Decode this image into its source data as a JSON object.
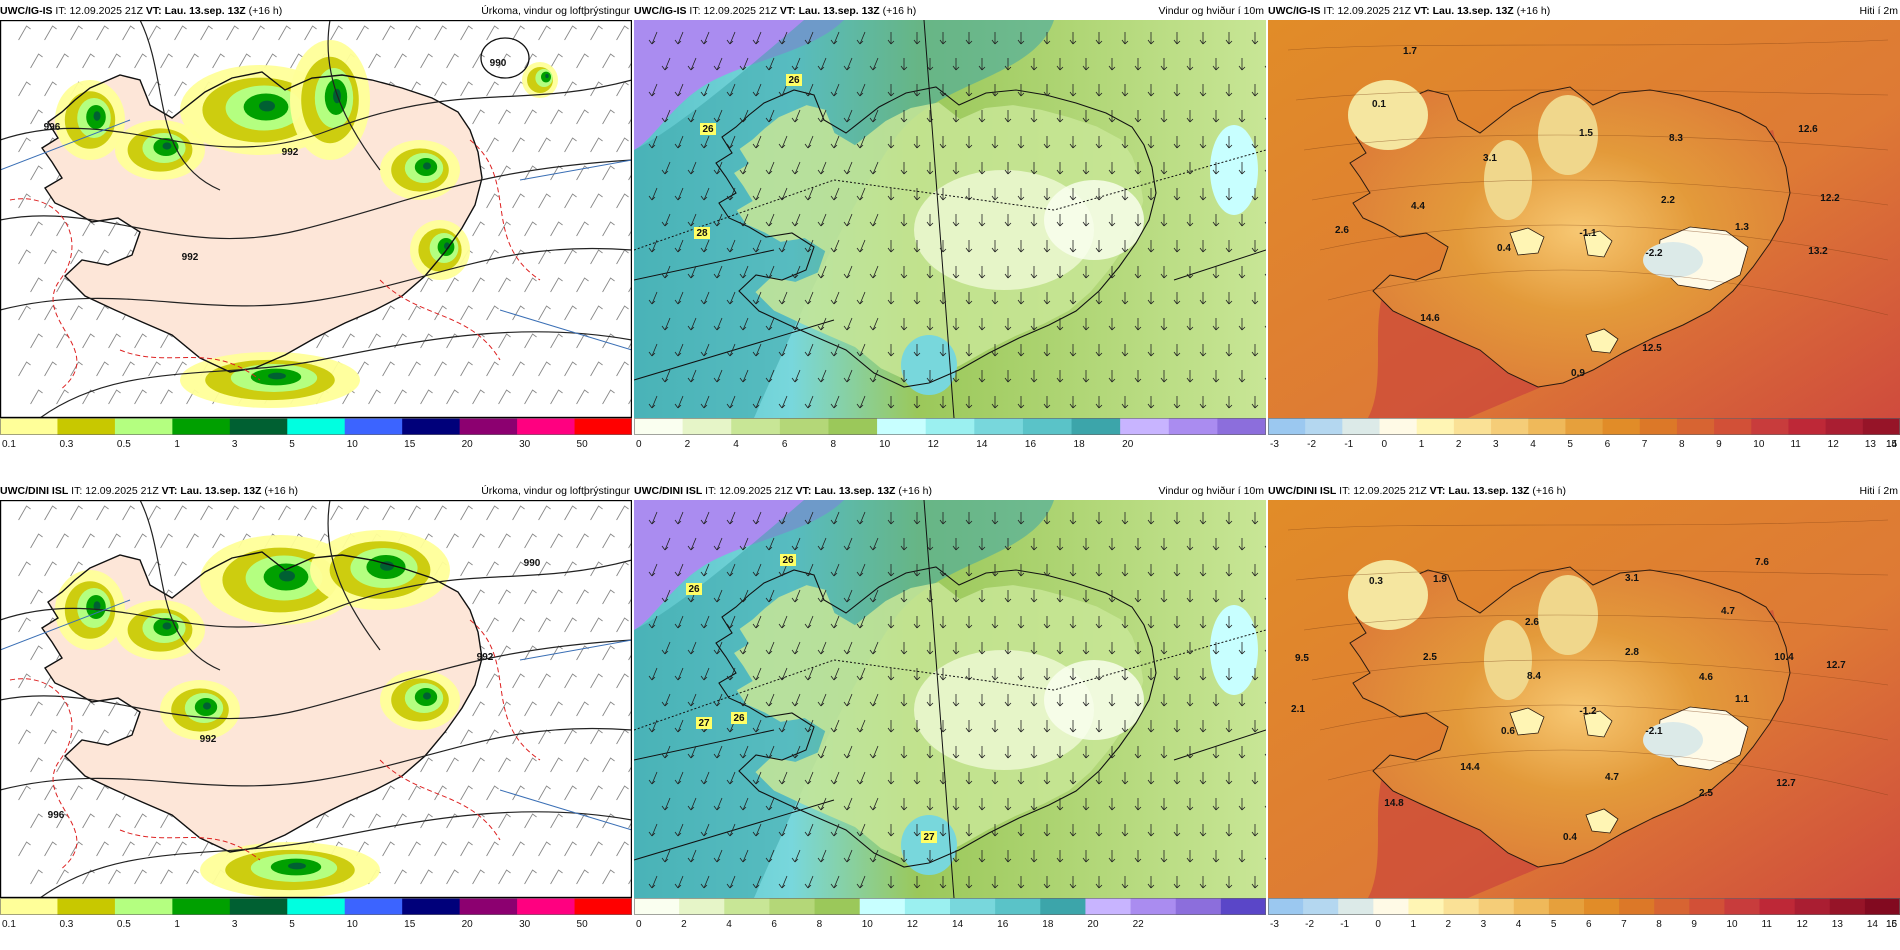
{
  "panels": [
    {
      "id": "igis-precip",
      "model": "UWC/IG-IS",
      "it_label": "IT:",
      "it_value": "12.09.2025 21Z",
      "vt_label": "VT:",
      "vt_value": "Lau. 13.sep. 13Z",
      "lead": "(+16 h)",
      "field": "Úrkoma, vindur og loftþrýstingur",
      "map_type": "precip",
      "colorbar": {
        "colors": [
          "#ffff99",
          "#c8c800",
          "#b4ff80",
          "#00a000",
          "#006032",
          "#00ffe0",
          "#3c64ff",
          "#00007a",
          "#8c0070",
          "#ff0080",
          "#ff0000"
        ],
        "ticks": [
          "0.1",
          "0.3",
          "0.5",
          "1",
          "3",
          "5",
          "10",
          "15",
          "20",
          "30",
          "50"
        ]
      },
      "annotations": [
        "990",
        "992",
        "992",
        "996"
      ]
    },
    {
      "id": "igis-wind",
      "model": "UWC/IG-IS",
      "it_label": "IT:",
      "it_value": "12.09.2025 21Z",
      "vt_label": "VT:",
      "vt_value": "Lau. 13.sep. 13Z",
      "lead": "(+16 h)",
      "field": "Vindur og hviður í 10m",
      "map_type": "wind",
      "colorbar": {
        "colors": [
          "#fafff0",
          "#e6f5c8",
          "#c8e696",
          "#b4d778",
          "#9bc85a",
          "#c8ffff",
          "#9bf0f0",
          "#78d7dc",
          "#5ac3c8",
          "#3ca5aa",
          "#c8b4ff",
          "#aa8cf0",
          "#8c6edc"
        ],
        "ticks": [
          "0",
          "2",
          "4",
          "6",
          "8",
          "10",
          "12",
          "14",
          "16",
          "18",
          "20"
        ]
      },
      "annotations": [
        "26",
        "26",
        "28"
      ]
    },
    {
      "id": "igis-temp",
      "model": "UWC/IG-IS",
      "it_label": "IT:",
      "it_value": "12.09.2025 21Z",
      "vt_label": "VT:",
      "vt_value": "Lau. 13.sep. 13Z",
      "lead": "(+16 h)",
      "field": "Hiti í 2m",
      "map_type": "temp",
      "colorbar": {
        "colors": [
          "#9bc8f0",
          "#b4d7f0",
          "#dceae8",
          "#fffae6",
          "#fff5b4",
          "#fae196",
          "#f5cd78",
          "#efb95a",
          "#e6a03c",
          "#e18c28",
          "#dc7828",
          "#d76432",
          "#d25037",
          "#c83c3c",
          "#be2837",
          "#aa1e32",
          "#961428"
        ],
        "ticks": [
          "-3",
          "-2",
          "-1",
          "0",
          "1",
          "2",
          "3",
          "4",
          "5",
          "6",
          "7",
          "8",
          "9",
          "10",
          "11",
          "12",
          "13",
          "14",
          "15"
        ]
      },
      "annotations": [
        "1.7",
        "0.1",
        "3.1",
        "1.5",
        "8.3",
        "12.6",
        "12.2",
        "2.2",
        "1.3",
        "13.2",
        "4.4",
        "2.6",
        "0.4",
        "-1.1",
        "-2.2",
        "14.6",
        "12.5",
        "0.9"
      ]
    },
    {
      "id": "dini-precip",
      "model": "UWC/DINI ISL",
      "it_label": "IT:",
      "it_value": "12.09.2025 21Z",
      "vt_label": "VT:",
      "vt_value": "Lau. 13.sep. 13Z",
      "lead": "(+16 h)",
      "field": "Úrkoma, vindur og loftþrýstingur",
      "map_type": "precip",
      "colorbar": {
        "colors": [
          "#ffff99",
          "#c8c800",
          "#b4ff80",
          "#00a000",
          "#006032",
          "#00ffe0",
          "#3c64ff",
          "#00007a",
          "#8c0070",
          "#ff0080",
          "#ff0000"
        ],
        "ticks": [
          "0.1",
          "0.3",
          "0.5",
          "1",
          "3",
          "5",
          "10",
          "15",
          "20",
          "30",
          "50"
        ]
      },
      "annotations": [
        "990",
        "992",
        "992",
        "996"
      ]
    },
    {
      "id": "dini-wind",
      "model": "UWC/DINI ISL",
      "it_label": "IT:",
      "it_value": "12.09.2025 21Z",
      "vt_label": "VT:",
      "vt_value": "Lau. 13.sep. 13Z",
      "lead": "(+16 h)",
      "field": "Vindur og hviður í 10m",
      "map_type": "wind",
      "colorbar": {
        "colors": [
          "#fafff0",
          "#e6f5c8",
          "#c8e696",
          "#b4d778",
          "#9bc85a",
          "#c8ffff",
          "#9bf0f0",
          "#78d7dc",
          "#5ac3c8",
          "#3ca5aa",
          "#c8b4ff",
          "#aa8cf0",
          "#8c6edc",
          "#5a46c8"
        ],
        "ticks": [
          "0",
          "2",
          "4",
          "6",
          "8",
          "10",
          "12",
          "14",
          "16",
          "18",
          "20",
          "22"
        ]
      },
      "annotations": [
        "26",
        "26",
        "27",
        "26",
        "27"
      ]
    },
    {
      "id": "dini-temp",
      "model": "UWC/DINI ISL",
      "it_label": "IT:",
      "it_value": "12.09.2025 21Z",
      "vt_label": "VT:",
      "vt_value": "Lau. 13.sep. 13Z",
      "lead": "(+16 h)",
      "field": "Hiti í 2m",
      "map_type": "temp",
      "colorbar": {
        "colors": [
          "#9bc8f0",
          "#b4d7f0",
          "#dceae8",
          "#fffae6",
          "#fff5b4",
          "#fae196",
          "#f5cd78",
          "#efb95a",
          "#e6a03c",
          "#e18c28",
          "#dc7828",
          "#d76432",
          "#d25037",
          "#c83c3c",
          "#be2837",
          "#aa1e32",
          "#961428",
          "#820a20"
        ],
        "ticks": [
          "-3",
          "-2",
          "-1",
          "0",
          "1",
          "2",
          "3",
          "4",
          "5",
          "6",
          "7",
          "8",
          "9",
          "10",
          "11",
          "12",
          "13",
          "14",
          "15",
          "16"
        ]
      },
      "annotations": [
        "0.3",
        "1.9",
        "3.1",
        "7.6",
        "4.7",
        "2.6",
        "2.8",
        "9.5",
        "2.5",
        "8.4",
        "4.6",
        "10.4",
        "12.7",
        "2.1",
        "0.6",
        "-1.2",
        "-2.1",
        "1.1",
        "14.4",
        "4.7",
        "12.7",
        "14.8",
        "2.5",
        "0.4"
      ]
    }
  ]
}
